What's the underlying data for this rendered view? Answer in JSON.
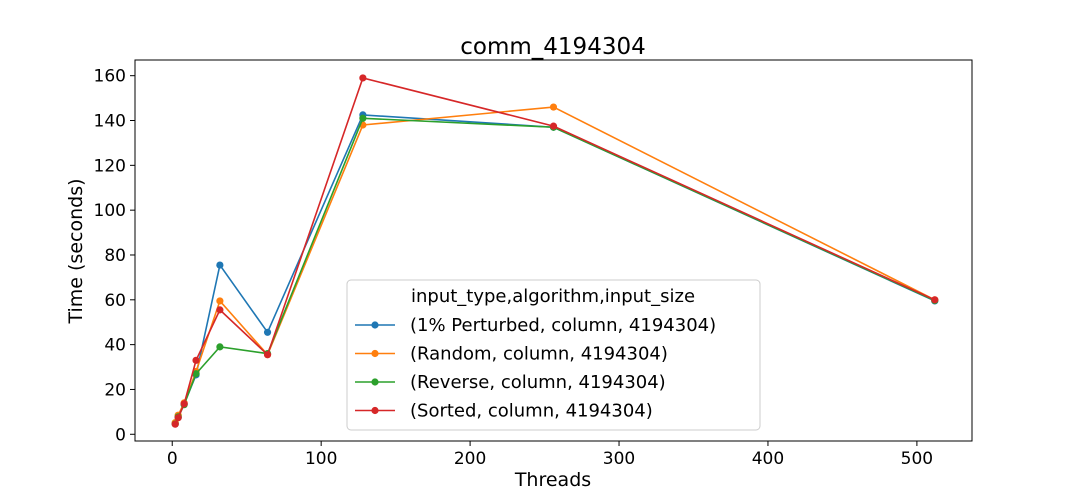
{
  "chart_data": {
    "type": "line",
    "title": "comm_4194304",
    "xlabel": "Threads",
    "ylabel": "Time (seconds)",
    "xlim": [
      -25,
      537
    ],
    "ylim": [
      -3,
      167
    ],
    "xticks": [
      0,
      100,
      200,
      300,
      400,
      500
    ],
    "yticks": [
      0,
      20,
      40,
      60,
      80,
      100,
      120,
      140,
      160
    ],
    "grid": false,
    "legend": {
      "title": "input_type,algorithm,input_size",
      "placement": "lower-center"
    },
    "x": [
      2,
      4,
      8,
      16,
      32,
      64,
      128,
      256,
      512
    ],
    "series": [
      {
        "name": "(1% Perturbed, column, 4194304)",
        "color": "#1f77b4",
        "values": [
          4.8,
          7.5,
          13.5,
          26.5,
          75.5,
          45.5,
          142.5,
          137,
          59.5
        ]
      },
      {
        "name": "(Random, column, 4194304)",
        "color": "#ff7f0e",
        "values": [
          5.2,
          8.5,
          14,
          28,
          59.5,
          35.5,
          138,
          146,
          60
        ]
      },
      {
        "name": "(Reverse, column, 4194304)",
        "color": "#2ca02c",
        "values": [
          4.6,
          7.8,
          13.2,
          27,
          39,
          36,
          141,
          137,
          59.7
        ]
      },
      {
        "name": "(Sorted, column, 4194304)",
        "color": "#d62728",
        "values": [
          4.5,
          7.4,
          13.6,
          33,
          55.5,
          35.5,
          159,
          137.5,
          60
        ]
      }
    ]
  }
}
